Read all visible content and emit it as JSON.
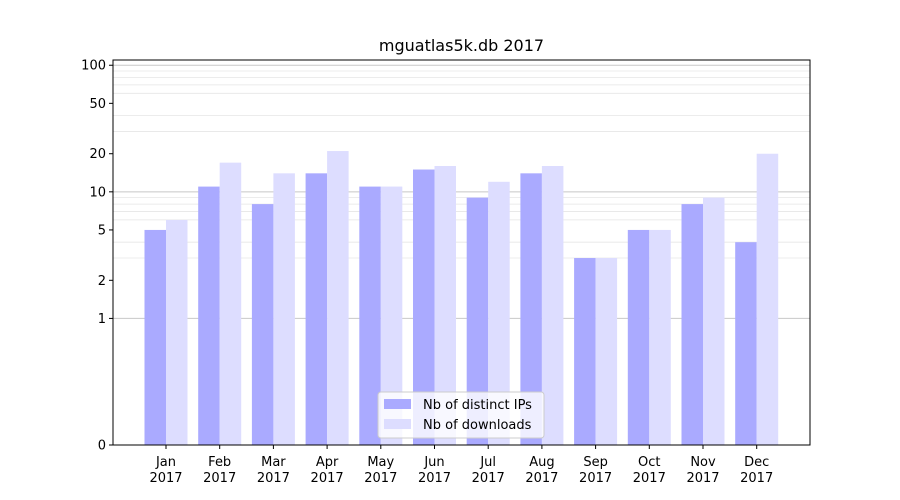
{
  "chart_data": {
    "type": "bar",
    "title": "mguatlas5k.db 2017",
    "xlabel": "",
    "ylabel": "",
    "y_scale": "symlog",
    "ylim": [
      0,
      110
    ],
    "y_ticks": [
      0,
      1,
      2,
      5,
      10,
      20,
      50,
      100
    ],
    "y_tick_labels": [
      "0",
      "1",
      "2",
      "5",
      "10",
      "20",
      "50",
      "100"
    ],
    "categories": [
      "Jan 2017",
      "Feb 2017",
      "Mar 2017",
      "Apr 2017",
      "May 2017",
      "Jun 2017",
      "Jul 2017",
      "Aug 2017",
      "Sep 2017",
      "Oct 2017",
      "Nov 2017",
      "Dec 2017"
    ],
    "category_lines": [
      [
        "Jan",
        "2017"
      ],
      [
        "Feb",
        "2017"
      ],
      [
        "Mar",
        "2017"
      ],
      [
        "Apr",
        "2017"
      ],
      [
        "May",
        "2017"
      ],
      [
        "Jun",
        "2017"
      ],
      [
        "Jul",
        "2017"
      ],
      [
        "Aug",
        "2017"
      ],
      [
        "Sep",
        "2017"
      ],
      [
        "Oct",
        "2017"
      ],
      [
        "Nov",
        "2017"
      ],
      [
        "Dec",
        "2017"
      ]
    ],
    "series": [
      {
        "name": "Nb of distinct IPs",
        "color": "#aaaaff",
        "values": [
          5,
          11,
          8,
          14,
          11,
          15,
          9,
          14,
          3,
          5,
          8,
          4
        ]
      },
      {
        "name": "Nb of downloads",
        "color": "#ddddff",
        "values": [
          6,
          17,
          14,
          21,
          11,
          16,
          12,
          16,
          3,
          5,
          9,
          20
        ]
      }
    ],
    "grid": true,
    "legend": "bottom-center"
  }
}
